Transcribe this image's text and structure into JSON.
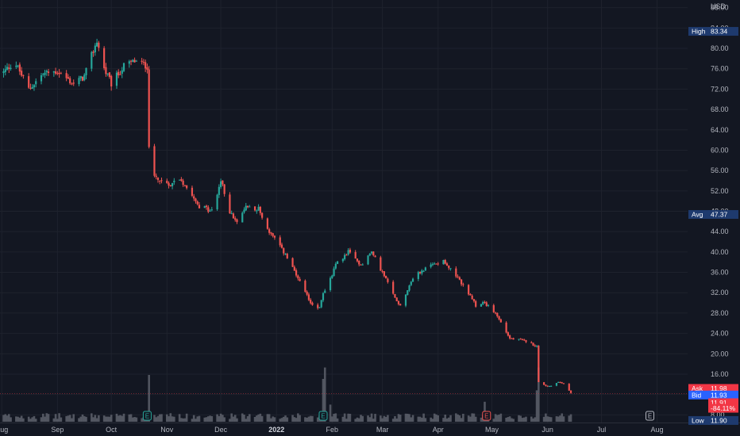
{
  "chart_data": {
    "type": "candlestick",
    "currency": "USD",
    "y_ticks": [
      "88.00",
      "84.00",
      "80.00",
      "76.00",
      "72.00",
      "68.00",
      "64.00",
      "60.00",
      "56.00",
      "52.00",
      "48.00",
      "44.00",
      "40.00",
      "36.00",
      "32.00",
      "28.00",
      "24.00",
      "20.00",
      "16.00",
      "12.00",
      "8.00"
    ],
    "ylim": [
      6.5,
      89.5
    ],
    "x_ticks": [
      {
        "label": "Aug",
        "date": "2021-08-01"
      },
      {
        "label": "Sep",
        "date": "2021-09-01"
      },
      {
        "label": "Oct",
        "date": "2021-10-01"
      },
      {
        "label": "Nov",
        "date": "2021-11-01"
      },
      {
        "label": "Dec",
        "date": "2021-12-01"
      },
      {
        "label": "2022",
        "date": "2022-01-01",
        "bold": true
      },
      {
        "label": "Feb",
        "date": "2022-02-01"
      },
      {
        "label": "Mar",
        "date": "2022-03-01"
      },
      {
        "label": "Apr",
        "date": "2022-04-01"
      },
      {
        "label": "May",
        "date": "2022-05-01"
      },
      {
        "label": "Jun",
        "date": "2022-06-01"
      },
      {
        "label": "Jul",
        "date": "2022-07-01"
      },
      {
        "label": "Aug",
        "date": "2022-08-01"
      }
    ],
    "xlim": [
      "2021-07-31",
      "2022-08-18"
    ],
    "close_anchors": [
      [
        "2021-07-31",
        74.5
      ],
      [
        "2021-08-08",
        77.5
      ],
      [
        "2021-08-16",
        72.0
      ],
      [
        "2021-08-24",
        75.0
      ],
      [
        "2021-09-01",
        75.5
      ],
      [
        "2021-09-10",
        73.0
      ],
      [
        "2021-09-16",
        74.5
      ],
      [
        "2021-09-23",
        81.5
      ],
      [
        "2021-09-27",
        76.0
      ],
      [
        "2021-10-01",
        73.0
      ],
      [
        "2021-10-08",
        76.5
      ],
      [
        "2021-10-14",
        77.5
      ],
      [
        "2021-10-21",
        76.5
      ],
      [
        "2021-10-22",
        61.0
      ],
      [
        "2021-10-25",
        55.0
      ],
      [
        "2021-11-01",
        53.0
      ],
      [
        "2021-11-08",
        54.5
      ],
      [
        "2021-11-15",
        51.5
      ],
      [
        "2021-11-19",
        49.0
      ],
      [
        "2021-11-26",
        48.0
      ],
      [
        "2021-12-01",
        54.0
      ],
      [
        "2021-12-06",
        48.0
      ],
      [
        "2021-12-10",
        45.5
      ],
      [
        "2021-12-15",
        49.0
      ],
      [
        "2021-12-22",
        48.5
      ],
      [
        "2021-12-27",
        44.5
      ],
      [
        "2022-01-06",
        39.5
      ],
      [
        "2022-01-14",
        34.0
      ],
      [
        "2022-01-20",
        30.0
      ],
      [
        "2022-01-25",
        29.0
      ],
      [
        "2022-01-27",
        32.0
      ],
      [
        "2022-02-01",
        35.5
      ],
      [
        "2022-02-03",
        37.5
      ],
      [
        "2022-02-10",
        40.0
      ],
      [
        "2022-02-17",
        37.5
      ],
      [
        "2022-02-23",
        40.0
      ],
      [
        "2022-03-01",
        36.0
      ],
      [
        "2022-03-08",
        31.0
      ],
      [
        "2022-03-11",
        29.5
      ],
      [
        "2022-03-18",
        35.0
      ],
      [
        "2022-03-26",
        37.0
      ],
      [
        "2022-04-04",
        38.5
      ],
      [
        "2022-04-07",
        37.0
      ],
      [
        "2022-04-15",
        33.5
      ],
      [
        "2022-04-22",
        29.5
      ],
      [
        "2022-04-27",
        30.0
      ],
      [
        "2022-05-03",
        28.0
      ],
      [
        "2022-05-11",
        23.0
      ],
      [
        "2022-05-20",
        22.5
      ],
      [
        "2022-05-26",
        21.5
      ],
      [
        "2022-05-27",
        14.5
      ],
      [
        "2022-06-01",
        13.5
      ],
      [
        "2022-06-08",
        14.5
      ],
      [
        "2022-06-12",
        13.5
      ],
      [
        "2022-06-14",
        12.2
      ]
    ],
    "volume_spikes": [
      [
        "2021-10-22",
        0.82
      ],
      [
        "2021-10-23",
        0.55
      ],
      [
        "2021-10-24",
        0.4
      ],
      [
        "2022-01-27",
        0.75
      ],
      [
        "2022-01-28",
        0.95
      ],
      [
        "2022-01-29",
        0.45
      ],
      [
        "2022-01-31",
        0.3
      ],
      [
        "2022-04-27",
        0.35
      ],
      [
        "2022-05-26",
        0.55
      ],
      [
        "2022-05-27",
        0.95
      ],
      [
        "2022-05-28",
        0.45
      ]
    ],
    "earnings_markers": [
      {
        "date": "2021-10-21",
        "label": "E",
        "color": "#26a69a"
      },
      {
        "date": "2022-01-27",
        "label": "E",
        "color": "#26a69a"
      },
      {
        "date": "2022-04-28",
        "label": "E",
        "color": "#ef5350"
      },
      {
        "date": "2022-07-28",
        "label": "E",
        "color": "#b2b5be"
      }
    ],
    "price_labels": [
      {
        "name": "High",
        "value": "83.34",
        "color": "#1e3a6e",
        "price": 83.34
      },
      {
        "name": "Avg",
        "value": "47.37",
        "color": "#1e3a6e",
        "price": 47.37
      },
      {
        "name": "Ask",
        "value": "11.98",
        "color": "#f23645",
        "price": 13.2
      },
      {
        "name": "Bid",
        "value": "11.93",
        "color": "#2962ff",
        "price": 11.9
      },
      {
        "name": "",
        "value": "11.91",
        "color": "#f23645",
        "price": 10.4
      },
      {
        "name": "",
        "value": "-84.11%",
        "color": "#f23645",
        "price": 9.3
      },
      {
        "name": "Low",
        "value": "11.90",
        "color": "#1e3a6e",
        "price": 6.9
      }
    ],
    "colors": {
      "up": "#26a69a",
      "down": "#ef5350",
      "background": "#131722",
      "grid": "#1e222d",
      "text": "#b2b5be",
      "volume": "#5d606b",
      "current_line": "#f23645"
    }
  }
}
